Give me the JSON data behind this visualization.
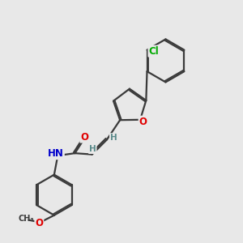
{
  "background_color": "#e8e8e8",
  "bond_color": "#3a3a3a",
  "bond_width": 1.6,
  "dbo": 0.07,
  "atom_colors": {
    "O": "#e00000",
    "N": "#0000cc",
    "Cl": "#00aa00",
    "H": "#5a8a8a",
    "C": "#3a3a3a"
  },
  "fs": 8.5
}
